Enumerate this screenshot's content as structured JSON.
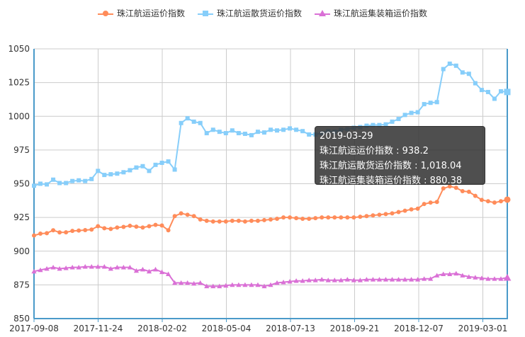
{
  "legend": {
    "series1": "珠江航运运价指数",
    "series2": "珠江航运散货运价指数",
    "series3": "珠江航运集装箱运价指数"
  },
  "tooltip": {
    "date": "2019-03-29",
    "line1": "珠江航运运价指数 : 938.2",
    "line2": "珠江航运散货运价指数 : 1,018.04",
    "line3": "珠江航运集装箱运价指数 : 880.38"
  },
  "colors": {
    "series1": "#ff8c5a",
    "series2": "#87cefa",
    "series3": "#da70d6",
    "axis": "#4a9ac9",
    "grid": "#cccccc"
  },
  "chart_data": {
    "type": "line",
    "ylim": [
      850,
      1050
    ],
    "yticks": [
      850,
      875,
      900,
      925,
      950,
      975,
      1000,
      1025,
      1050
    ],
    "xtick_labels": [
      "2017-09-08",
      "2017-11-24",
      "2018-02-02",
      "2018-05-04",
      "2018-07-13",
      "2018-09-21",
      "2018-12-07",
      "2019-03-01"
    ],
    "markers": [
      "circle",
      "rect",
      "triangle"
    ],
    "grid": true,
    "legend_position": "top",
    "series": [
      {
        "name": "珠江航运运价指数",
        "values": [
          911.6,
          913.0,
          913.3,
          915.5,
          913.9,
          914.0,
          915.0,
          915.3,
          915.6,
          916.0,
          918.5,
          917.0,
          916.5,
          917.5,
          918.0,
          918.8,
          918.2,
          917.5,
          918.5,
          919.5,
          919.0,
          915.5,
          926.0,
          928.0,
          927.0,
          926.0,
          923.5,
          922.5,
          922.0,
          922.0,
          922.0,
          922.5,
          922.5,
          922.0,
          922.5,
          922.5,
          923.0,
          923.5,
          924.0,
          925.0,
          925.0,
          924.5,
          924.0,
          924.0,
          924.5,
          925.0,
          925.0,
          925.0,
          925.0,
          925.0,
          925.0,
          925.5,
          926.0,
          926.5,
          927.0,
          927.5,
          928.0,
          929.0,
          930.0,
          931.0,
          931.5,
          935.0,
          936.0,
          936.5,
          946.5,
          948.0,
          947.0,
          944.5,
          944.0,
          941.0,
          938.0,
          937.0,
          936.0,
          937.0,
          938.2
        ]
      },
      {
        "name": "珠江航运散货运价指数",
        "values": [
          948.5,
          950.0,
          949.5,
          953.0,
          950.5,
          950.5,
          952.0,
          952.5,
          952.0,
          953.5,
          959.5,
          956.5,
          957.0,
          957.5,
          958.5,
          960.0,
          962.0,
          963.0,
          959.5,
          964.0,
          965.5,
          966.5,
          960.5,
          995.0,
          998.5,
          996.0,
          995.0,
          987.5,
          990.0,
          988.5,
          987.5,
          989.5,
          987.5,
          987.0,
          986.0,
          988.5,
          988.0,
          990.0,
          989.5,
          990.0,
          991.0,
          990.0,
          989.0,
          986.5,
          986.5,
          987.5,
          989.0,
          988.5,
          990.0,
          990.5,
          991.5,
          992.0,
          993.0,
          993.5,
          993.5,
          994.0,
          996.0,
          998.0,
          1001.0,
          1002.5,
          1003.0,
          1009.0,
          1010.0,
          1010.5,
          1035.0,
          1039.0,
          1037.5,
          1032.5,
          1031.5,
          1024.5,
          1019.5,
          1018.0,
          1013.0,
          1018.5,
          1018.04
        ]
      },
      {
        "name": "珠江航运集装箱运价指数",
        "values": [
          885.0,
          886.0,
          887.0,
          888.0,
          887.0,
          887.5,
          888.0,
          888.0,
          888.5,
          888.5,
          888.5,
          888.5,
          887.0,
          888.0,
          888.0,
          888.0,
          885.5,
          886.5,
          885.0,
          886.5,
          884.5,
          883.0,
          876.5,
          876.5,
          876.5,
          876.0,
          876.5,
          874.0,
          874.0,
          874.0,
          874.5,
          875.0,
          875.0,
          875.0,
          875.0,
          875.0,
          874.0,
          875.0,
          876.5,
          877.0,
          877.5,
          878.0,
          878.0,
          878.5,
          878.5,
          879.0,
          878.5,
          878.5,
          878.5,
          879.0,
          878.5,
          878.5,
          879.0,
          879.0,
          879.0,
          879.0,
          879.0,
          879.0,
          879.0,
          879.0,
          879.0,
          879.5,
          879.5,
          882.0,
          883.0,
          883.0,
          883.5,
          882.0,
          881.0,
          880.5,
          880.0,
          879.5,
          879.5,
          879.5,
          880.38
        ]
      }
    ]
  }
}
